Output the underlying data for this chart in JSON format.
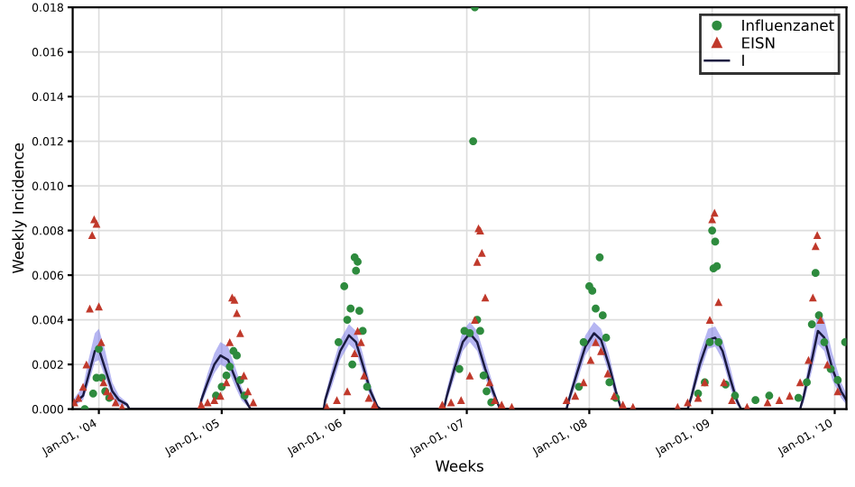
{
  "chart_data": {
    "type": "scatter",
    "xlabel": "Weeks",
    "ylabel": "Weekly Incidence",
    "xlim": [
      "2003-10-15",
      "2010-02-05"
    ],
    "ylim": [
      0,
      0.018
    ],
    "xticks": [
      {
        "value": "2004-01-01",
        "label": "Jan-01, '04"
      },
      {
        "value": "2005-01-01",
        "label": "Jan-01, '05"
      },
      {
        "value": "2006-01-01",
        "label": "Jan-01, '06"
      },
      {
        "value": "2007-01-01",
        "label": "Jan-01, '07"
      },
      {
        "value": "2008-01-01",
        "label": "Jan-01, '08"
      },
      {
        "value": "2009-01-01",
        "label": "Jan-01, '09"
      },
      {
        "value": "2010-01-01",
        "label": "Jan-01, '10"
      }
    ],
    "yticks": [
      {
        "value": 0,
        "label": "0.000"
      },
      {
        "value": 0.002,
        "label": "0.002"
      },
      {
        "value": 0.004,
        "label": "0.004"
      },
      {
        "value": 0.006,
        "label": "0.006"
      },
      {
        "value": 0.008,
        "label": "0.008"
      },
      {
        "value": 0.01,
        "label": "0.010"
      },
      {
        "value": 0.012,
        "label": "0.012"
      },
      {
        "value": 0.014,
        "label": "0.014"
      },
      {
        "value": 0.016,
        "label": "0.016"
      },
      {
        "value": 0.018,
        "label": "0.018"
      }
    ],
    "grid": true,
    "legend": "top right",
    "series": [
      {
        "name": "Influenzanet",
        "marker": "circle",
        "color": "#2e8b3e",
        "x": [
          "2003-11-20",
          "2003-12-15",
          "2003-12-25",
          "2004-01-01",
          "2004-01-10",
          "2004-01-20",
          "2004-02-01",
          "2004-12-15",
          "2005-01-01",
          "2005-01-15",
          "2005-01-25",
          "2005-02-05",
          "2005-02-15",
          "2005-02-25",
          "2005-03-10",
          "2005-12-15",
          "2006-01-01",
          "2006-01-10",
          "2006-01-20",
          "2006-01-25",
          "2006-02-01",
          "2006-02-05",
          "2006-02-10",
          "2006-02-15",
          "2006-02-25",
          "2006-03-10",
          "2006-12-10",
          "2006-12-25",
          "2007-01-10",
          "2007-01-20",
          "2007-01-25",
          "2007-02-01",
          "2007-02-10",
          "2007-02-20",
          "2007-03-01",
          "2007-03-15",
          "2007-12-01",
          "2007-12-15",
          "2008-01-01",
          "2008-01-10",
          "2008-01-20",
          "2008-02-01",
          "2008-02-10",
          "2008-02-20",
          "2008-03-01",
          "2008-03-20",
          "2008-11-20",
          "2008-12-10",
          "2008-12-25",
          "2009-01-01",
          "2009-01-05",
          "2009-01-10",
          "2009-01-15",
          "2009-01-20",
          "2009-02-10",
          "2009-03-10",
          "2009-05-10",
          "2009-06-20",
          "2009-09-15",
          "2009-10-10",
          "2009-10-25",
          "2009-11-05",
          "2009-11-15",
          "2009-12-01",
          "2009-12-20",
          "2010-01-10",
          "2010-02-01"
        ],
        "values": [
          0.0,
          0.0007,
          0.0014,
          0.0027,
          0.0014,
          0.0008,
          0.0005,
          0.0006,
          0.001,
          0.0015,
          0.0019,
          0.0026,
          0.0024,
          0.0013,
          0.0006,
          0.003,
          0.0055,
          0.004,
          0.0045,
          0.002,
          0.0068,
          0.0062,
          0.0066,
          0.0044,
          0.0035,
          0.001,
          0.0018,
          0.0035,
          0.0034,
          0.012,
          0.018,
          0.004,
          0.0035,
          0.0015,
          0.0008,
          0.0003,
          0.001,
          0.003,
          0.0055,
          0.0053,
          0.0045,
          0.0068,
          0.0042,
          0.0032,
          0.0012,
          0.0005,
          0.0007,
          0.0012,
          0.003,
          0.008,
          0.0063,
          0.0075,
          0.0064,
          0.003,
          0.0011,
          0.0006,
          0.0004,
          0.0006,
          0.0005,
          0.0012,
          0.0038,
          0.0061,
          0.0042,
          0.003,
          0.0018,
          0.0013,
          0.003
        ]
      },
      {
        "name": "EISN",
        "marker": "triangle",
        "color": "#c0392b",
        "x": [
          "2003-10-20",
          "2003-11-01",
          "2003-11-15",
          "2003-11-25",
          "2003-12-05",
          "2003-12-12",
          "2003-12-18",
          "2003-12-25",
          "2004-01-01",
          "2004-01-08",
          "2004-01-15",
          "2004-01-25",
          "2004-02-05",
          "2004-02-20",
          "2004-03-10",
          "2004-11-01",
          "2004-11-20",
          "2004-12-10",
          "2004-12-28",
          "2005-01-15",
          "2005-01-25",
          "2005-02-01",
          "2005-02-08",
          "2005-02-15",
          "2005-02-25",
          "2005-03-08",
          "2005-03-20",
          "2005-04-05",
          "2005-11-10",
          "2005-12-10",
          "2006-01-10",
          "2006-02-01",
          "2006-02-10",
          "2006-02-20",
          "2006-03-01",
          "2006-03-15",
          "2006-04-01",
          "2006-10-20",
          "2006-11-15",
          "2006-12-15",
          "2007-01-10",
          "2007-01-25",
          "2007-02-01",
          "2007-02-05",
          "2007-02-10",
          "2007-02-15",
          "2007-02-25",
          "2007-03-10",
          "2007-03-25",
          "2007-04-15",
          "2007-05-15",
          "2007-10-25",
          "2007-11-20",
          "2007-12-15",
          "2008-01-05",
          "2008-01-20",
          "2008-02-05",
          "2008-02-25",
          "2008-03-15",
          "2008-04-10",
          "2008-05-10",
          "2008-09-20",
          "2008-10-20",
          "2008-11-20",
          "2008-12-10",
          "2008-12-25",
          "2009-01-01",
          "2009-01-08",
          "2009-01-20",
          "2009-02-05",
          "2009-03-01",
          "2009-04-15",
          "2009-06-15",
          "2009-07-20",
          "2009-08-20",
          "2009-09-20",
          "2009-10-15",
          "2009-10-28",
          "2009-11-05",
          "2009-11-10",
          "2009-11-20",
          "2009-12-10",
          "2010-01-10"
        ],
        "values": [
          0.0003,
          0.0005,
          0.001,
          0.002,
          0.0045,
          0.0078,
          0.0085,
          0.0083,
          0.0046,
          0.003,
          0.0012,
          0.0008,
          0.0006,
          0.0003,
          0.0001,
          0.0002,
          0.0003,
          0.0004,
          0.0006,
          0.0012,
          0.003,
          0.005,
          0.0049,
          0.0043,
          0.0034,
          0.0015,
          0.0008,
          0.0003,
          0.0001,
          0.0004,
          0.0008,
          0.0025,
          0.0035,
          0.003,
          0.0015,
          0.0005,
          0.0002,
          0.0002,
          0.0003,
          0.0004,
          0.0015,
          0.004,
          0.0066,
          0.0081,
          0.008,
          0.007,
          0.005,
          0.0012,
          0.0004,
          0.0002,
          0.0001,
          0.0004,
          0.0006,
          0.0012,
          0.0022,
          0.003,
          0.0026,
          0.0016,
          0.0006,
          0.0002,
          0.0001,
          0.0001,
          0.0003,
          0.0005,
          0.0012,
          0.004,
          0.0085,
          0.0088,
          0.0048,
          0.0012,
          0.0004,
          0.0001,
          0.0003,
          0.0004,
          0.0006,
          0.0012,
          0.0022,
          0.005,
          0.0073,
          0.0078,
          0.004,
          0.002,
          0.0008
        ]
      },
      {
        "name": "I",
        "type": "line",
        "marker": "none",
        "line_style": "solid",
        "color": "#1a1a40",
        "x": [
          "2003-10-15",
          "2003-11-15",
          "2003-12-01",
          "2003-12-20",
          "2004-01-01",
          "2004-01-20",
          "2004-02-10",
          "2004-03-01",
          "2004-03-25",
          "2004-04-01",
          "2004-10-28",
          "2004-11-01",
          "2004-11-20",
          "2004-12-10",
          "2004-12-28",
          "2005-01-20",
          "2005-02-10",
          "2005-03-01",
          "2005-03-20",
          "2005-03-28",
          "2005-11-01",
          "2005-11-05",
          "2005-11-25",
          "2005-12-20",
          "2006-01-15",
          "2006-02-05",
          "2006-02-25",
          "2006-03-20",
          "2006-04-10",
          "2006-04-20",
          "2006-10-25",
          "2006-11-01",
          "2006-11-25",
          "2006-12-20",
          "2007-01-10",
          "2007-02-01",
          "2007-02-25",
          "2007-03-20",
          "2007-04-10",
          "2007-10-25",
          "2007-11-01",
          "2007-11-25",
          "2007-12-20",
          "2008-01-15",
          "2008-02-05",
          "2008-02-28",
          "2008-03-20",
          "2008-04-05",
          "2008-10-20",
          "2008-11-01",
          "2008-11-25",
          "2008-12-20",
          "2009-01-10",
          "2009-02-01",
          "2009-02-25",
          "2009-03-15",
          "2009-03-28",
          "2009-09-20",
          "2009-10-01",
          "2009-10-25",
          "2009-11-12",
          "2009-12-01",
          "2009-12-25",
          "2010-01-20",
          "2010-02-05"
        ],
        "values": [
          0.0002,
          0.0006,
          0.0015,
          0.0026,
          0.0027,
          0.0018,
          0.0008,
          0.0004,
          0.0002,
          0.0,
          0.0,
          0.0004,
          0.0012,
          0.002,
          0.0024,
          0.0022,
          0.0014,
          0.0007,
          0.0002,
          0.0,
          0.0,
          0.0004,
          0.0014,
          0.0026,
          0.0033,
          0.003,
          0.002,
          0.0008,
          0.0001,
          0.0,
          0.0,
          0.0005,
          0.0018,
          0.003,
          0.0034,
          0.003,
          0.0018,
          0.0008,
          0.0,
          0.0,
          0.0004,
          0.0016,
          0.0028,
          0.0034,
          0.0031,
          0.002,
          0.0008,
          0.0,
          0.0,
          0.0006,
          0.002,
          0.0031,
          0.0032,
          0.0026,
          0.0013,
          0.0004,
          0.0,
          0.0,
          0.0006,
          0.0022,
          0.0035,
          0.0032,
          0.0018,
          0.0008,
          0.0004
        ],
        "lower": [
          0.0001,
          0.0004,
          0.0011,
          0.0021,
          0.0022,
          0.0014,
          0.0005,
          0.0002,
          0.0001,
          0.0,
          0.0,
          0.0002,
          0.0009,
          0.0016,
          0.002,
          0.0018,
          0.001,
          0.0004,
          0.0001,
          0.0,
          0.0,
          0.0002,
          0.001,
          0.0022,
          0.0029,
          0.0026,
          0.0016,
          0.0005,
          0.0,
          0.0,
          0.0,
          0.0003,
          0.0014,
          0.0026,
          0.003,
          0.0026,
          0.0014,
          0.0005,
          0.0,
          0.0,
          0.0002,
          0.0012,
          0.0024,
          0.003,
          0.0027,
          0.0016,
          0.0005,
          0.0,
          0.0,
          0.0004,
          0.0016,
          0.0027,
          0.0028,
          0.0022,
          0.0009,
          0.0002,
          0.0,
          0.0,
          0.0003,
          0.0017,
          0.0029,
          0.0026,
          0.0013,
          0.0005,
          0.0002
        ],
        "upper": [
          0.0004,
          0.001,
          0.0022,
          0.0034,
          0.0036,
          0.0026,
          0.0012,
          0.0006,
          0.0003,
          0.0,
          0.0,
          0.0006,
          0.0016,
          0.0025,
          0.003,
          0.0028,
          0.0019,
          0.001,
          0.0004,
          0.0,
          0.0,
          0.0006,
          0.0018,
          0.0031,
          0.0038,
          0.0035,
          0.0025,
          0.0011,
          0.0002,
          0.0,
          0.0,
          0.0008,
          0.0022,
          0.0035,
          0.0039,
          0.0035,
          0.0023,
          0.0011,
          0.0,
          0.0,
          0.0006,
          0.002,
          0.0033,
          0.0039,
          0.0036,
          0.0025,
          0.0011,
          0.0,
          0.0,
          0.0009,
          0.0025,
          0.0036,
          0.0037,
          0.0031,
          0.0018,
          0.0007,
          0.0,
          0.0,
          0.0009,
          0.0028,
          0.0044,
          0.004,
          0.0025,
          0.0012,
          0.0007
        ]
      }
    ]
  }
}
